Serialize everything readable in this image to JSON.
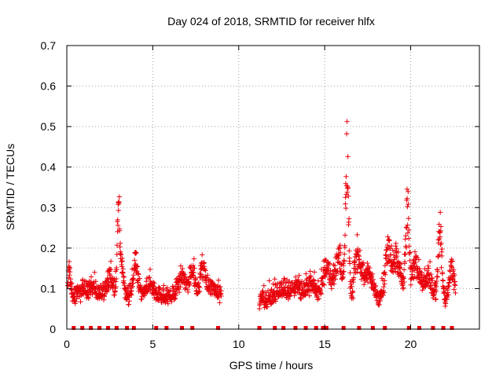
{
  "chart_data": {
    "type": "scatter",
    "title": "Day 024 of 2018, SRMTID for receiver hlfx",
    "xlabel": "GPS time / hours",
    "ylabel": "SRMTID / TECUs",
    "xlim": [
      0,
      24
    ],
    "ylim": [
      0,
      0.7
    ],
    "xticks": [
      0,
      5,
      10,
      15,
      20
    ],
    "xtick_labels": [
      "0",
      "5",
      "10",
      "15",
      "20"
    ],
    "yticks": [
      0,
      0.1,
      0.2,
      0.3,
      0.4,
      0.5,
      0.6,
      0.7
    ],
    "ytick_labels": [
      "0",
      "0.1",
      "0.2",
      "0.3",
      "0.4",
      "0.5",
      "0.6",
      "0.7"
    ],
    "grid": true,
    "series_color": "#e8000b",
    "series": [
      {
        "name": "SRMTID",
        "marker": "plus",
        "segments": [
          {
            "x_start": 0.0,
            "x_end": 9.0,
            "base": 0.08,
            "noise": 0.035,
            "peaks": [
              {
                "x": 0.15,
                "h": 0.09,
                "w": 0.1
              },
              {
                "x": 0.9,
                "h": 0.02,
                "w": 0.3
              },
              {
                "x": 1.5,
                "h": 0.03,
                "w": 0.3
              },
              {
                "x": 2.5,
                "h": 0.06,
                "w": 0.25
              },
              {
                "x": 3.0,
                "h": 0.28,
                "w": 0.1
              },
              {
                "x": 3.2,
                "h": 0.1,
                "w": 0.15
              },
              {
                "x": 4.0,
                "h": 0.1,
                "w": 0.2
              },
              {
                "x": 4.8,
                "h": 0.04,
                "w": 0.3
              },
              {
                "x": 6.7,
                "h": 0.07,
                "w": 0.3
              },
              {
                "x": 7.3,
                "h": 0.08,
                "w": 0.2
              },
              {
                "x": 7.9,
                "h": 0.1,
                "w": 0.2
              },
              {
                "x": 8.4,
                "h": 0.03,
                "w": 0.3
              }
            ]
          },
          {
            "x_start": 11.2,
            "x_end": 22.6,
            "base": 0.07,
            "noise": 0.04,
            "peaks": [
              {
                "x": 12.5,
                "h": 0.03,
                "w": 0.5
              },
              {
                "x": 13.3,
                "h": 0.04,
                "w": 0.4
              },
              {
                "x": 14.2,
                "h": 0.05,
                "w": 0.4
              },
              {
                "x": 15.1,
                "h": 0.1,
                "w": 0.3
              },
              {
                "x": 15.8,
                "h": 0.13,
                "w": 0.3
              },
              {
                "x": 16.3,
                "h": 0.45,
                "w": 0.13
              },
              {
                "x": 16.9,
                "h": 0.13,
                "w": 0.25
              },
              {
                "x": 17.5,
                "h": 0.08,
                "w": 0.4
              },
              {
                "x": 18.7,
                "h": 0.15,
                "w": 0.25
              },
              {
                "x": 19.2,
                "h": 0.12,
                "w": 0.3
              },
              {
                "x": 19.8,
                "h": 0.26,
                "w": 0.15
              },
              {
                "x": 20.3,
                "h": 0.12,
                "w": 0.3
              },
              {
                "x": 21.0,
                "h": 0.08,
                "w": 0.3
              },
              {
                "x": 21.7,
                "h": 0.22,
                "w": 0.15
              },
              {
                "x": 22.4,
                "h": 0.1,
                "w": 0.2
              }
            ]
          }
        ]
      }
    ],
    "satellite_markers": {
      "y": 0,
      "x": [
        0.4,
        0.9,
        1.4,
        1.9,
        2.4,
        2.9,
        3.5,
        3.9,
        5.2,
        5.8,
        6.7,
        7.3,
        8.8,
        11.2,
        12.1,
        12.6,
        13.3,
        13.9,
        14.5,
        14.9,
        15.1,
        16.1,
        17.0,
        17.8,
        18.5,
        19.9,
        20.5,
        21.3,
        21.9,
        22.4
      ]
    }
  }
}
